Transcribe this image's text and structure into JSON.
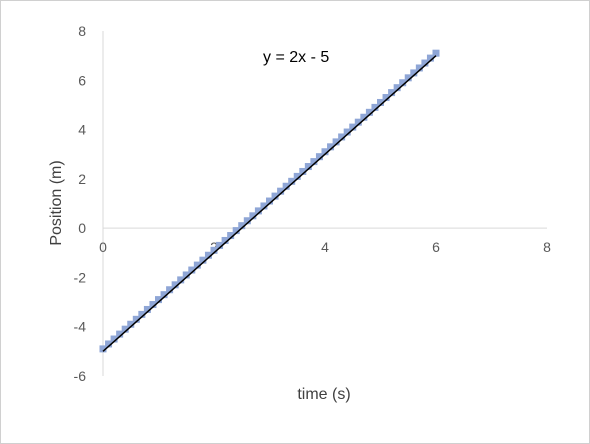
{
  "chart_data": {
    "type": "scatter",
    "xlabel": "time (s)",
    "ylabel": "Position (m)",
    "xlim": [
      0,
      8
    ],
    "ylim": [
      -6,
      8
    ],
    "x_ticks": [
      0,
      2,
      4,
      6,
      8
    ],
    "y_ticks": [
      -6,
      -4,
      -2,
      0,
      2,
      4,
      6,
      8
    ],
    "x_tick_labels": [
      "0",
      "2",
      "4",
      "6",
      "8"
    ],
    "y_tick_labels": [
      "-6",
      "-4",
      "-2",
      "0",
      "2",
      "4",
      "6",
      "8"
    ],
    "grid": false,
    "legend": "none",
    "series": [
      {
        "marker": "square",
        "color": "#8fa6d6",
        "x": [
          0,
          0.1,
          0.2,
          0.3,
          0.4,
          0.5,
          0.6,
          0.7,
          0.8,
          0.9,
          1.0,
          1.1,
          1.2,
          1.3,
          1.4,
          1.5,
          1.6,
          1.7,
          1.8,
          1.9,
          2.0,
          2.1,
          2.2,
          2.3,
          2.4,
          2.5,
          2.6,
          2.7,
          2.8,
          2.9,
          3.0,
          3.1,
          3.2,
          3.3,
          3.4,
          3.5,
          3.6,
          3.7,
          3.8,
          3.9,
          4.0,
          4.1,
          4.2,
          4.3,
          4.4,
          4.5,
          4.6,
          4.7,
          4.8,
          4.9,
          5.0,
          5.1,
          5.2,
          5.3,
          5.4,
          5.5,
          5.6,
          5.7,
          5.8,
          5.9,
          6.0
        ],
        "y": [
          -4.9,
          -4.7,
          -4.5,
          -4.3,
          -4.1,
          -3.9,
          -3.7,
          -3.5,
          -3.3,
          -3.1,
          -2.9,
          -2.7,
          -2.5,
          -2.3,
          -2.1,
          -1.9,
          -1.7,
          -1.5,
          -1.3,
          -1.1,
          -0.9,
          -0.7,
          -0.5,
          -0.3,
          -0.1,
          0.1,
          0.3,
          0.5,
          0.7,
          0.9,
          1.1,
          1.3,
          1.5,
          1.7,
          1.9,
          2.1,
          2.3,
          2.5,
          2.7,
          2.9,
          3.1,
          3.3,
          3.5,
          3.7,
          3.9,
          4.1,
          4.3,
          4.5,
          4.7,
          4.9,
          5.1,
          5.3,
          5.5,
          5.7,
          5.9,
          6.1,
          6.3,
          6.5,
          6.7,
          6.9,
          7.1
        ]
      }
    ],
    "trendline": {
      "type": "linear",
      "slope": 2,
      "intercept": -5,
      "x_range": [
        0,
        6
      ],
      "color": "#000000",
      "label": "y = 2x - 5"
    }
  }
}
